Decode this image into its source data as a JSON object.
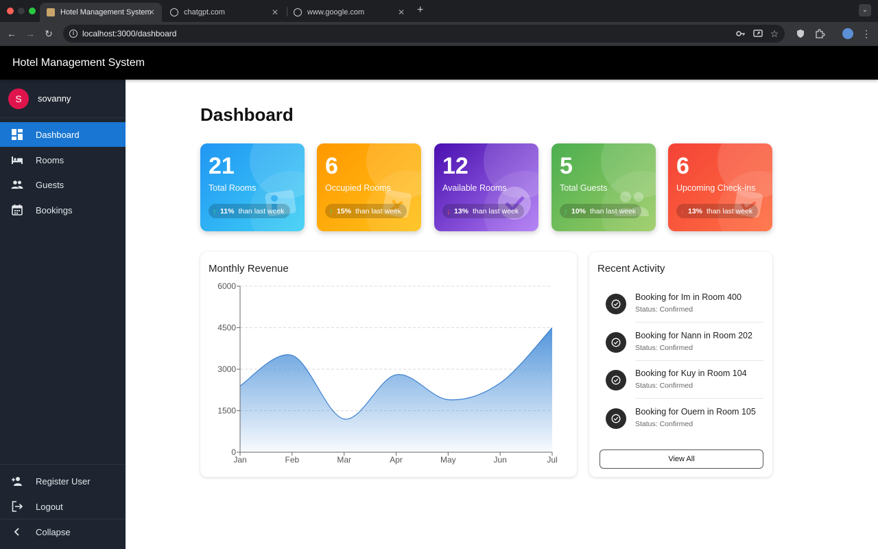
{
  "browser": {
    "tabs": [
      {
        "title": "Hotel Management System",
        "active": true
      },
      {
        "title": "chatgpt.com",
        "active": false
      },
      {
        "title": "www.google.com",
        "active": false
      }
    ],
    "url": "localhost:3000/dashboard"
  },
  "app": {
    "title": "Hotel Management System"
  },
  "user": {
    "initial": "S",
    "name": "sovanny"
  },
  "sidebar": {
    "items": [
      {
        "label": "Dashboard",
        "icon": "dashboard-icon",
        "active": true
      },
      {
        "label": "Rooms",
        "icon": "bed-icon",
        "active": false
      },
      {
        "label": "Guests",
        "icon": "people-icon",
        "active": false
      },
      {
        "label": "Bookings",
        "icon": "calendar-icon",
        "active": false
      }
    ],
    "bottom": [
      {
        "label": "Register User",
        "icon": "person-add-icon"
      },
      {
        "label": "Logout",
        "icon": "logout-icon"
      },
      {
        "label": "Collapse",
        "icon": "chevron-left-icon"
      }
    ]
  },
  "page": {
    "title": "Dashboard"
  },
  "stats": [
    {
      "value": "21",
      "label": "Total Rooms",
      "pct": "11%",
      "direction": "up",
      "suffix": "than last week",
      "colors": [
        "#2196f3",
        "#3fd0f5"
      ]
    },
    {
      "value": "6",
      "label": "Occupied Rooms",
      "pct": "15%",
      "direction": "up",
      "suffix": "than last week",
      "colors": [
        "#ff9800",
        "#ffc21a"
      ]
    },
    {
      "value": "12",
      "label": "Available Rooms",
      "pct": "13%",
      "direction": "down",
      "suffix": "than last week",
      "colors": [
        "#4a0fb0",
        "#b07cf5"
      ]
    },
    {
      "value": "5",
      "label": "Total Guests",
      "pct": "10%",
      "direction": "up",
      "suffix": "than last week",
      "colors": [
        "#4caf50",
        "#9ccc65"
      ]
    },
    {
      "value": "6",
      "label": "Upcoming Check-ins",
      "pct": "13%",
      "direction": "down",
      "suffix": "than last week",
      "colors": [
        "#f44336",
        "#ff7043"
      ]
    }
  ],
  "revenue": {
    "title": "Monthly Revenue",
    "chart_data": {
      "type": "area",
      "title": "Monthly Revenue",
      "categories": [
        "Jan",
        "Feb",
        "Mar",
        "Apr",
        "May",
        "Jun",
        "Jul"
      ],
      "values": [
        2400,
        3500,
        1200,
        2800,
        1900,
        2500,
        4500
      ],
      "yticks": [
        0,
        1500,
        3000,
        4500,
        6000
      ],
      "ylim": [
        0,
        6000
      ],
      "grid": true,
      "color": "#4a90d9"
    }
  },
  "activity": {
    "title": "Recent Activity",
    "items": [
      {
        "text": "Booking for Im in Room 400",
        "status": "Status: Confirmed"
      },
      {
        "text": "Booking for Nann in Room 202",
        "status": "Status: Confirmed"
      },
      {
        "text": "Booking for Kuy in Room 104",
        "status": "Status: Confirmed"
      },
      {
        "text": "Booking for Ouern in Room 105",
        "status": "Status: Confirmed"
      }
    ],
    "view_all": "View All"
  }
}
